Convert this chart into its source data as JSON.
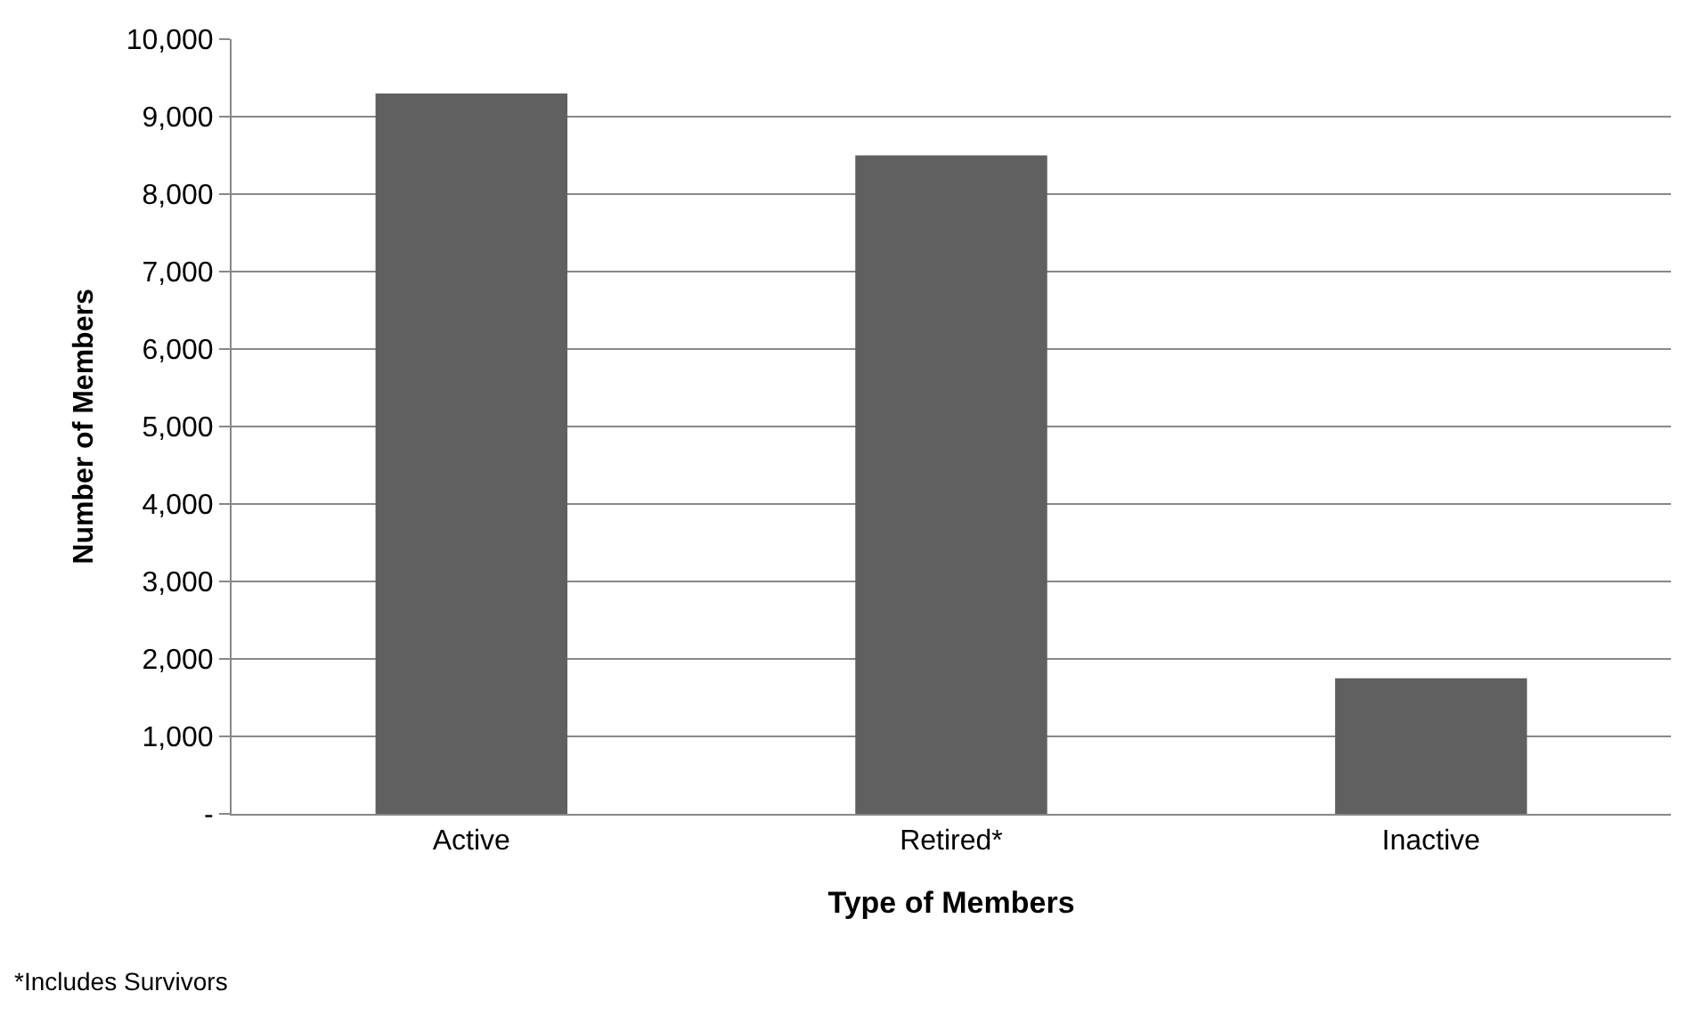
{
  "chart_data": {
    "type": "bar",
    "xlabel": "Type of Members",
    "ylabel": "Number of Members",
    "categories": [
      "Active",
      "Retired*",
      "Inactive"
    ],
    "values": [
      9300,
      8500,
      1750
    ],
    "color": "#606060",
    "ylim": [
      0,
      10000
    ],
    "yticks": [
      {
        "value": 0,
        "label": "-"
      },
      {
        "value": 1000,
        "label": "1,000"
      },
      {
        "value": 2000,
        "label": "2,000"
      },
      {
        "value": 3000,
        "label": "3,000"
      },
      {
        "value": 4000,
        "label": "4,000"
      },
      {
        "value": 5000,
        "label": "5,000"
      },
      {
        "value": 6000,
        "label": "6,000"
      },
      {
        "value": 7000,
        "label": "7,000"
      },
      {
        "value": 8000,
        "label": "8,000"
      },
      {
        "value": 9000,
        "label": "9,000"
      },
      {
        "value": 10000,
        "label": "10,000"
      }
    ],
    "grid": "y",
    "annotations": [
      "*Includes Survivors"
    ]
  }
}
